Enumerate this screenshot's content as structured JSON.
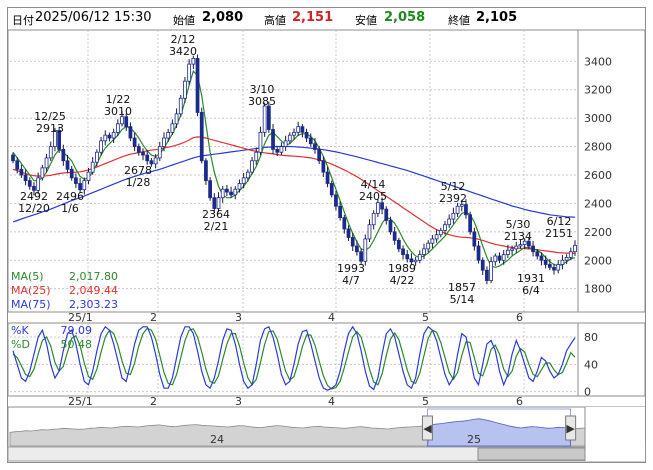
{
  "header": {
    "date_label": "日付",
    "datetime": "2025/06/12 15:30",
    "open_label": "始値",
    "open": "2,080",
    "high_label": "高値",
    "high": "2,151",
    "low_label": "安値",
    "low": "2,058",
    "close_label": "終値",
    "close": "2,105",
    "colors": {
      "high": "#d42020",
      "low": "#1d8a1d",
      "neutral": "#000000"
    }
  },
  "chart_data": [
    {
      "type": "candlestick",
      "title": "",
      "y_ticks": [
        1800,
        2000,
        2200,
        2400,
        2600,
        2800,
        3000,
        3200,
        3400
      ],
      "ylim": [
        1650,
        3620
      ],
      "x_ticks": [
        "25/1",
        "2",
        "3",
        "4",
        "5",
        "6"
      ],
      "grid": true,
      "legend_position": "bottom-left",
      "legend": [
        {
          "name": "MA(5)",
          "value": "2,017.80",
          "color": "#2a8a2a"
        },
        {
          "name": "MA(25)",
          "value": "2,049.44",
          "color": "#e03030"
        },
        {
          "name": "MA(75)",
          "value": "2,303.23",
          "color": "#2a3ad8"
        }
      ],
      "close_series": [
        2700,
        2640,
        2600,
        2560,
        2520,
        2492,
        2580,
        2650,
        2720,
        2800,
        2913,
        2780,
        2700,
        2640,
        2580,
        2540,
        2496,
        2560,
        2620,
        2690,
        2760,
        2840,
        2880,
        2860,
        2900,
        2960,
        3010,
        2940,
        2860,
        2800,
        2760,
        2740,
        2700,
        2678,
        2720,
        2800,
        2860,
        2900,
        2960,
        3030,
        3140,
        3260,
        3380,
        3420,
        3040,
        2700,
        2560,
        2440,
        2364,
        2440,
        2500,
        2480,
        2460,
        2500,
        2540,
        2580,
        2620,
        2700,
        2760,
        2900,
        3085,
        2920,
        2780,
        2760,
        2800,
        2840,
        2880,
        2900,
        2940,
        2900,
        2860,
        2820,
        2780,
        2700,
        2620,
        2540,
        2460,
        2380,
        2300,
        2220,
        2160,
        2100,
        2060,
        1993,
        2150,
        2250,
        2330,
        2405,
        2360,
        2280,
        2200,
        2140,
        2080,
        2040,
        2010,
        1989,
        2000,
        2040,
        2080,
        2120,
        2150,
        2180,
        2210,
        2250,
        2290,
        2330,
        2380,
        2392,
        2320,
        2200,
        2100,
        2000,
        1930,
        1857,
        1990,
        2030,
        2000,
        2040,
        2070,
        2080,
        2100,
        2110,
        2134,
        2100,
        2060,
        2030,
        2000,
        1970,
        1950,
        1931,
        1970,
        2000,
        2020,
        2060,
        2105
      ],
      "ma5_series": [
        2760,
        2720,
        2680,
        2640,
        2600,
        2560,
        2560,
        2580,
        2620,
        2680,
        2740,
        2780,
        2760,
        2730,
        2700,
        2640,
        2590,
        2570,
        2580,
        2620,
        2680,
        2740,
        2790,
        2820,
        2850,
        2880,
        2920,
        2940,
        2930,
        2900,
        2860,
        2810,
        2770,
        2740,
        2730,
        2750,
        2790,
        2840,
        2890,
        2950,
        3020,
        3120,
        3230,
        3330,
        3300,
        3160,
        2960,
        2760,
        2620,
        2520,
        2460,
        2440,
        2440,
        2460,
        2490,
        2520,
        2560,
        2610,
        2660,
        2730,
        2820,
        2880,
        2900,
        2870,
        2840,
        2810,
        2820,
        2850,
        2880,
        2890,
        2890,
        2870,
        2840,
        2790,
        2730,
        2660,
        2580,
        2500,
        2420,
        2340,
        2260,
        2190,
        2130,
        2080,
        2070,
        2090,
        2140,
        2200,
        2260,
        2300,
        2290,
        2260,
        2210,
        2150,
        2100,
        2060,
        2030,
        2020,
        2030,
        2050,
        2080,
        2110,
        2140,
        2170,
        2210,
        2250,
        2290,
        2330,
        2340,
        2320,
        2270,
        2190,
        2100,
        2020,
        1960,
        1950,
        1960,
        1980,
        2000,
        2030,
        2050,
        2070,
        2090,
        2090,
        2080,
        2070,
        2050,
        2020,
        1990,
        1970,
        1960,
        1970,
        1990,
        2010,
        2017
      ],
      "ma25_series": [
        2640,
        2630,
        2620,
        2610,
        2600,
        2595,
        2592,
        2592,
        2594,
        2598,
        2604,
        2610,
        2614,
        2616,
        2618,
        2620,
        2622,
        2628,
        2636,
        2646,
        2656,
        2668,
        2680,
        2692,
        2704,
        2716,
        2728,
        2738,
        2746,
        2752,
        2758,
        2764,
        2770,
        2774,
        2778,
        2784,
        2790,
        2796,
        2802,
        2810,
        2820,
        2832,
        2846,
        2862,
        2868,
        2866,
        2860,
        2852,
        2844,
        2836,
        2828,
        2820,
        2812,
        2804,
        2796,
        2788,
        2780,
        2772,
        2766,
        2760,
        2756,
        2752,
        2748,
        2744,
        2740,
        2736,
        2734,
        2732,
        2730,
        2728,
        2724,
        2720,
        2714,
        2706,
        2698,
        2688,
        2676,
        2664,
        2650,
        2636,
        2620,
        2604,
        2588,
        2570,
        2550,
        2530,
        2510,
        2490,
        2470,
        2450,
        2430,
        2410,
        2390,
        2370,
        2350,
        2330,
        2310,
        2290,
        2270,
        2250,
        2232,
        2216,
        2202,
        2190,
        2180,
        2172,
        2166,
        2162,
        2160,
        2158,
        2154,
        2148,
        2140,
        2130,
        2120,
        2112,
        2106,
        2100,
        2094,
        2090,
        2086,
        2084,
        2082,
        2080,
        2078,
        2074,
        2070,
        2066,
        2062,
        2058,
        2054,
        2052,
        2050,
        2050,
        2049
      ],
      "ma75_series": [
        2270,
        2280,
        2290,
        2300,
        2310,
        2320,
        2330,
        2340,
        2350,
        2360,
        2372,
        2384,
        2396,
        2408,
        2420,
        2430,
        2440,
        2452,
        2464,
        2476,
        2488,
        2500,
        2512,
        2524,
        2536,
        2548,
        2560,
        2570,
        2580,
        2590,
        2600,
        2608,
        2616,
        2624,
        2632,
        2640,
        2650,
        2660,
        2670,
        2680,
        2690,
        2700,
        2710,
        2720,
        2728,
        2734,
        2738,
        2742,
        2746,
        2750,
        2754,
        2758,
        2762,
        2766,
        2770,
        2774,
        2778,
        2782,
        2786,
        2790,
        2794,
        2796,
        2798,
        2800,
        2800,
        2800,
        2800,
        2799,
        2797,
        2795,
        2792,
        2789,
        2786,
        2782,
        2778,
        2773,
        2768,
        2762,
        2756,
        2749,
        2742,
        2735,
        2728,
        2720,
        2712,
        2704,
        2696,
        2688,
        2680,
        2672,
        2664,
        2656,
        2648,
        2640,
        2632,
        2622,
        2612,
        2602,
        2592,
        2582,
        2572,
        2562,
        2552,
        2542,
        2532,
        2522,
        2512,
        2502,
        2492,
        2482,
        2472,
        2462,
        2452,
        2442,
        2432,
        2422,
        2412,
        2402,
        2392,
        2382,
        2374,
        2366,
        2358,
        2350,
        2344,
        2338,
        2332,
        2326,
        2320,
        2316,
        2312,
        2309,
        2306,
        2304,
        2303
      ],
      "annotations": [
        {
          "date": "12/25",
          "value": "2913"
        },
        {
          "date": "12/20",
          "value": "2492"
        },
        {
          "date": "1/6",
          "value": "2496"
        },
        {
          "date": "1/22",
          "value": "3010"
        },
        {
          "date": "1/28",
          "value": "2678"
        },
        {
          "date": "2/12",
          "value": "3420"
        },
        {
          "date": "2/21",
          "value": "2364"
        },
        {
          "date": "3/10",
          "value": "3085"
        },
        {
          "date": "4/14",
          "value": "2405"
        },
        {
          "date": "4/7",
          "value": "1993"
        },
        {
          "date": "4/22",
          "value": "1989"
        },
        {
          "date": "5/12",
          "value": "2392"
        },
        {
          "date": "5/14",
          "value": "1857"
        },
        {
          "date": "5/30",
          "value": "2134"
        },
        {
          "date": "6/4",
          "value": "1931"
        },
        {
          "date": "6/12",
          "value": "2151"
        }
      ]
    },
    {
      "type": "line",
      "title": "",
      "y_ticks": [
        0,
        40,
        80
      ],
      "ylim": [
        -5,
        105
      ],
      "x_ticks": [
        "25/1",
        "2",
        "3",
        "4",
        "5",
        "6"
      ],
      "grid": true,
      "legend_position": "top-left",
      "legend": [
        {
          "name": "%K",
          "value": "79.09",
          "color": "#2a3ad8"
        },
        {
          "name": "%D",
          "value": "50.48",
          "color": "#2a8a2a"
        }
      ],
      "k_series": [
        60,
        40,
        20,
        15,
        30,
        55,
        80,
        90,
        70,
        40,
        20,
        30,
        60,
        85,
        90,
        70,
        40,
        15,
        10,
        30,
        60,
        85,
        95,
        90,
        70,
        45,
        20,
        15,
        40,
        70,
        90,
        95,
        95,
        80,
        55,
        25,
        5,
        5,
        20,
        50,
        80,
        95,
        95,
        85,
        60,
        30,
        10,
        5,
        20,
        45,
        75,
        92,
        90,
        70,
        40,
        15,
        5,
        10,
        40,
        75,
        92,
        95,
        80,
        55,
        25,
        10,
        15,
        40,
        70,
        88,
        90,
        70,
        45,
        20,
        5,
        2,
        5,
        10,
        30,
        60,
        85,
        95,
        85,
        60,
        30,
        8,
        3,
        20,
        55,
        85,
        92,
        80,
        55,
        30,
        10,
        5,
        20,
        55,
        85,
        95,
        90,
        75,
        50,
        25,
        10,
        20,
        55,
        85,
        80,
        50,
        20,
        10,
        40,
        70,
        75,
        60,
        30,
        10,
        25,
        55,
        75,
        60,
        40,
        20,
        15,
        30,
        50,
        45,
        30,
        20,
        25,
        40,
        60,
        70,
        79.09
      ],
      "d_series": [
        55,
        50,
        38,
        25,
        22,
        33,
        55,
        75,
        80,
        67,
        43,
        30,
        37,
        58,
        78,
        82,
        67,
        42,
        22,
        18,
        33,
        58,
        80,
        90,
        85,
        68,
        45,
        27,
        25,
        42,
        67,
        85,
        93,
        90,
        77,
        53,
        28,
        12,
        10,
        25,
        50,
        75,
        90,
        92,
        80,
        58,
        33,
        15,
        12,
        23,
        47,
        70,
        85,
        85,
        67,
        42,
        20,
        10,
        18,
        42,
        69,
        88,
        89,
        77,
        53,
        30,
        17,
        22,
        42,
        66,
        83,
        83,
        68,
        45,
        23,
        9,
        4,
        6,
        15,
        35,
        58,
        80,
        88,
        80,
        58,
        33,
        14,
        10,
        26,
        53,
        77,
        86,
        76,
        55,
        32,
        15,
        12,
        27,
        53,
        78,
        90,
        87,
        72,
        50,
        28,
        18,
        28,
        53,
        73,
        72,
        50,
        27,
        23,
        40,
        62,
        68,
        55,
        33,
        22,
        30,
        52,
        63,
        58,
        40,
        25,
        22,
        32,
        42,
        42,
        32,
        25,
        28,
        42,
        57,
        50.48
      ]
    },
    {
      "type": "area",
      "title": "",
      "x_ticks": [
        "24",
        "25"
      ],
      "selection": {
        "start_fraction": 0.726,
        "end_fraction": 0.975
      },
      "colors": {
        "history_fill": "#d3d3d3",
        "history_line": "#8a8a8a",
        "selection_fill": "#b7c2ee",
        "selection_line": "#5868cc"
      },
      "values": [
        40,
        42,
        43,
        45,
        44,
        46,
        48,
        47,
        49,
        50,
        52,
        51,
        50,
        49,
        50,
        52,
        53,
        55,
        54,
        53,
        55,
        57,
        58,
        57,
        56,
        58,
        60,
        61,
        62,
        60,
        58,
        57,
        59,
        61,
        62,
        63,
        61,
        60,
        59,
        58,
        57,
        56,
        58,
        60,
        59,
        57,
        55,
        54,
        56,
        58,
        60,
        59,
        57,
        55,
        54,
        53,
        55,
        57,
        58,
        56,
        55,
        54,
        53,
        52,
        54,
        56,
        57,
        55,
        53,
        52,
        51,
        50,
        52,
        54,
        55,
        56,
        57,
        58,
        60,
        62,
        64,
        66,
        68,
        70,
        72,
        73,
        75,
        78,
        80,
        78,
        74,
        70,
        66,
        62,
        58,
        55,
        53,
        55,
        57,
        56,
        54,
        52,
        53,
        55,
        54,
        52,
        51,
        52,
        53
      ]
    }
  ]
}
